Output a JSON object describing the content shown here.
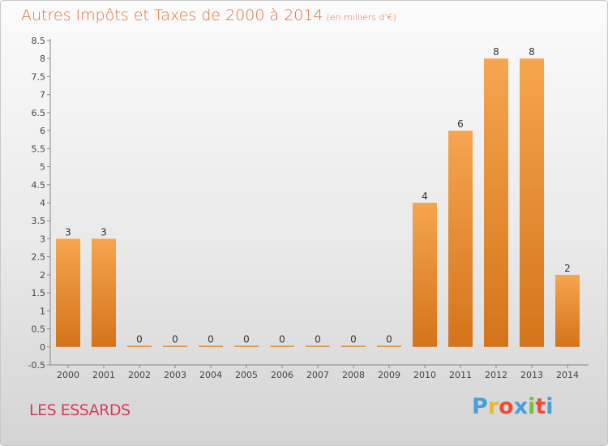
{
  "title": "Autres Impôts et Taxes de 2000 à 2014",
  "title_unit": "(en milliers d'€)",
  "place": "LES ESSARDS",
  "logo": [
    "P",
    "r",
    "o",
    "x",
    "i",
    "t",
    "i"
  ],
  "logo_colors": [
    "#4a9fd8",
    "#f0b431",
    "#e94e3a",
    "#4a9fd8",
    "#7bbd3c",
    "#e94e3a",
    "#4a9fd8"
  ],
  "colors": {
    "bar_top": "#f6a54f",
    "bar_bottom": "#d4741a",
    "title": "#e2713a",
    "place": "#d73b5b"
  },
  "chart_data": {
    "type": "bar",
    "categories": [
      "2000",
      "2001",
      "2002",
      "2003",
      "2004",
      "2005",
      "2006",
      "2007",
      "2008",
      "2009",
      "2010",
      "2011",
      "2012",
      "2013",
      "2014"
    ],
    "values": [
      3,
      3,
      0,
      0,
      0,
      0,
      0,
      0,
      0,
      0,
      4,
      6,
      8,
      8,
      2
    ],
    "data_labels": [
      "3",
      "3",
      "0",
      "0",
      "0",
      "0",
      "0",
      "0",
      "0",
      "0",
      "4",
      "6",
      "8",
      "8",
      "2"
    ],
    "ylim": [
      -0.5,
      8.5
    ],
    "yticks": [
      -0.5,
      0,
      0.5,
      1,
      1.5,
      2,
      2.5,
      3,
      3.5,
      4,
      4.5,
      5,
      5.5,
      6,
      6.5,
      7,
      7.5,
      8,
      8.5
    ],
    "ytick_labels": [
      "-0.5",
      "0",
      "0.5",
      "1",
      "1.5",
      "2",
      "2.5",
      "3",
      "3.5",
      "4",
      "4.5",
      "5",
      "5.5",
      "6",
      "6.5",
      "7",
      "7.5",
      "8",
      "8.5"
    ],
    "grid": false,
    "legend": "none"
  }
}
